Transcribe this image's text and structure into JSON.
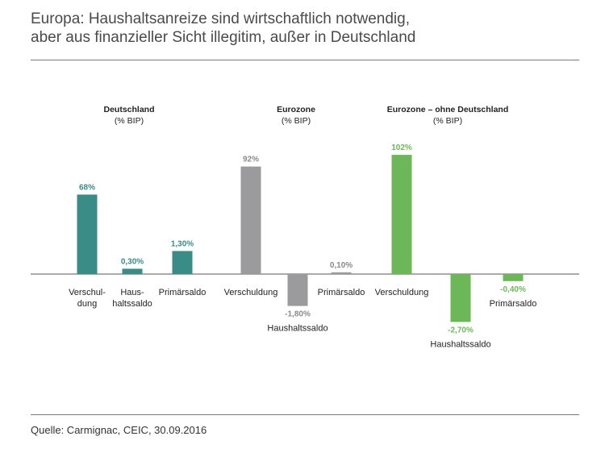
{
  "title": {
    "line1": "Europa: Haushaltsanreize sind wirtschaftlich notwendig,",
    "line2": "aber aus finanzieller Sicht illegitim, außer in Deutschland"
  },
  "source": "Quelle: Carmignac, CEIC, 30.09.2016",
  "chart_data": {
    "type": "bar",
    "units": "% BIP",
    "groups": [
      {
        "title": "Deutschland",
        "subtitle": "(% BIP)",
        "color": "#3a8c86",
        "bars": [
          {
            "category": "Verschul-dung",
            "label_lines": [
              "Verschul-",
              "dung"
            ],
            "value": 68,
            "value_label": "68%"
          },
          {
            "category": "Haus-haltssaldo",
            "label_lines": [
              "Haus-",
              "haltssaldo"
            ],
            "value": 0.3,
            "value_label": "0,30%"
          },
          {
            "category": "Primärsaldo",
            "label_lines": [
              "Primärsaldo"
            ],
            "value": 1.3,
            "value_label": "1,30%"
          }
        ]
      },
      {
        "title": "Eurozone",
        "subtitle": "(% BIP)",
        "color": "#9b9b9d",
        "bars": [
          {
            "category": "Verschuldung",
            "label_lines": [
              "Verschuldung"
            ],
            "value": 92,
            "value_label": "92%"
          },
          {
            "category": "Haushaltssaldo",
            "label_lines": [
              "Haushaltssaldo"
            ],
            "value": -1.8,
            "value_label": "-1,80%"
          },
          {
            "category": "Primärsaldo",
            "label_lines": [
              "Primärsaldo"
            ],
            "value": 0.1,
            "value_label": "0,10%"
          }
        ]
      },
      {
        "title": "Eurozone – ohne Deutschland",
        "subtitle": "(% BIP)",
        "color": "#6cb858",
        "bars": [
          {
            "category": "Verschuldung",
            "label_lines": [
              "Verschuldung"
            ],
            "value": 102,
            "value_label": "102%"
          },
          {
            "category": "Haushaltssaldo",
            "label_lines": [
              "Haushaltssaldo"
            ],
            "value": -2.7,
            "value_label": "-2,70%"
          },
          {
            "category": "Primärsaldo",
            "label_lines": [
              "Primärsaldo"
            ],
            "value": -0.4,
            "value_label": "-0,40%"
          }
        ]
      }
    ]
  }
}
